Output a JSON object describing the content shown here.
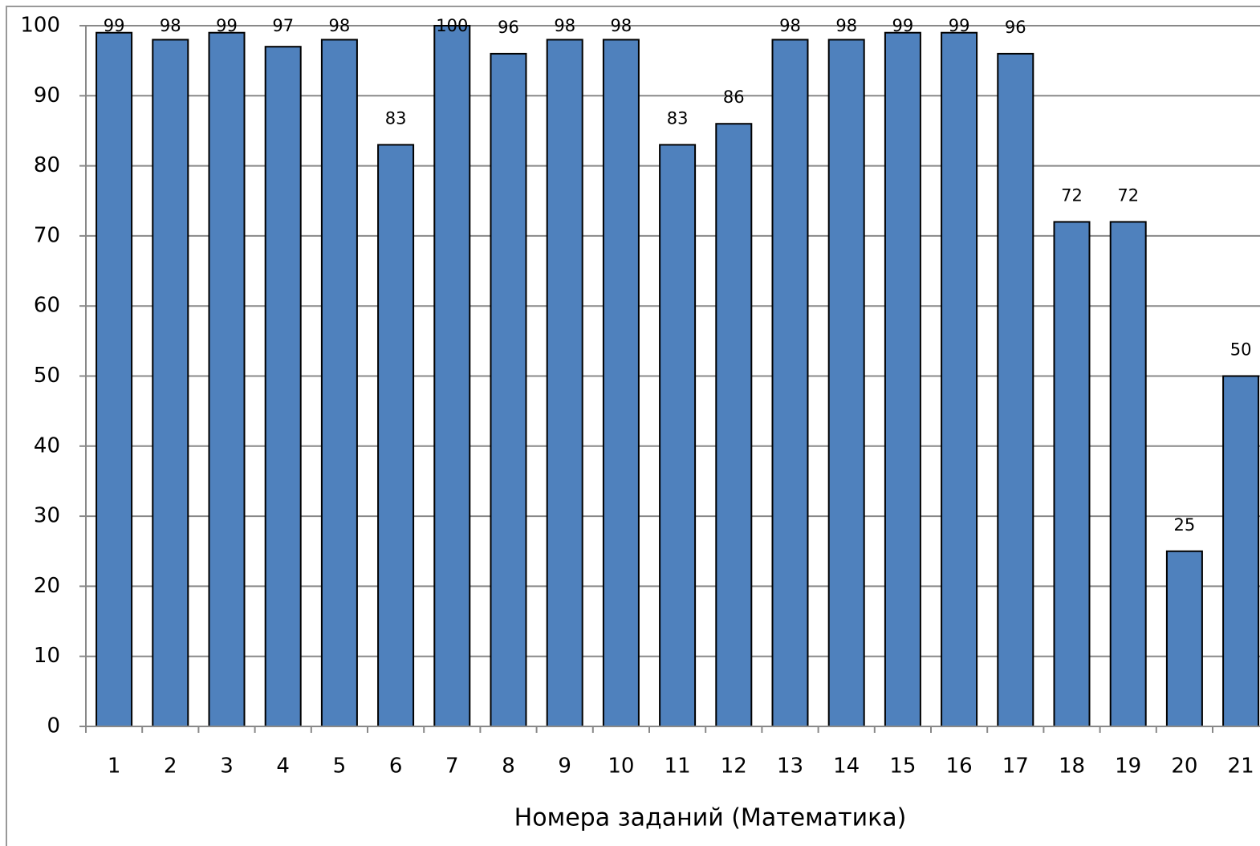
{
  "chart_data": {
    "type": "bar",
    "x_label": "Номера заданий (Математика)",
    "categories": [
      "1",
      "2",
      "3",
      "4",
      "5",
      "6",
      "7",
      "8",
      "9",
      "10",
      "11",
      "12",
      "13",
      "14",
      "15",
      "16",
      "17",
      "18",
      "19",
      "20",
      "21"
    ],
    "values": [
      99,
      98,
      99,
      97,
      98,
      83,
      100,
      96,
      98,
      98,
      83,
      86,
      98,
      98,
      99,
      99,
      96,
      72,
      72,
      25,
      50
    ],
    "color": "#4f81bd",
    "ylim": [
      0,
      100
    ],
    "yticks": [
      0,
      10,
      20,
      30,
      40,
      50,
      60,
      70,
      80,
      90,
      100
    ],
    "grid": true
  }
}
